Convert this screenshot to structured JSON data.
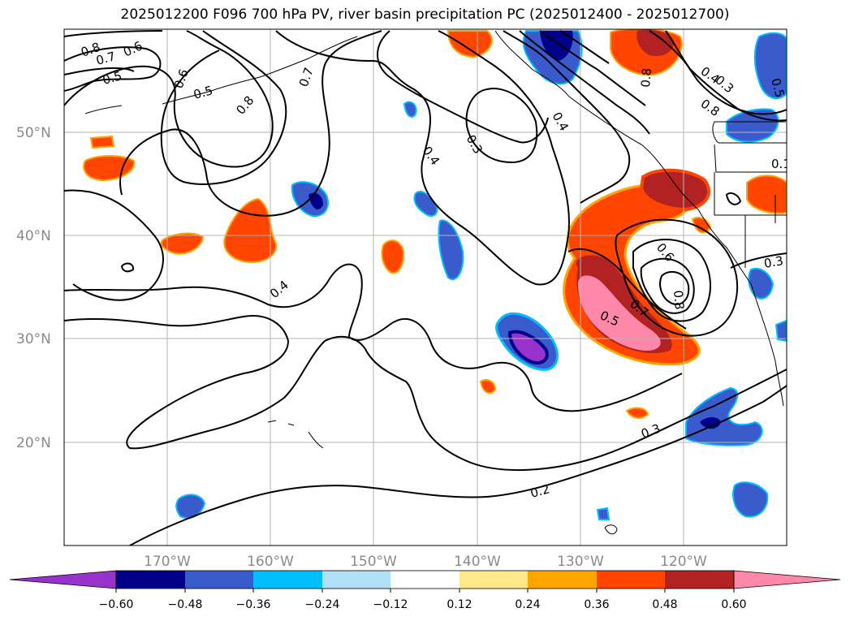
{
  "title": "2025012200 F096 700 hPa PV, river basin precipitation PC (2025012400 - 2025012700)",
  "map": {
    "lat_labels": [
      "50°N",
      "40°N",
      "30°N",
      "20°N"
    ],
    "lon_labels": [
      "170°W",
      "160°W",
      "150°W",
      "140°W",
      "130°W",
      "120°W"
    ],
    "contour_labels": [
      "0.8",
      "0.7",
      "0.6",
      "0.5",
      "0.6",
      "0.5",
      "0.8",
      "0.7",
      "0.4",
      "0.3",
      "0.4",
      "0.4",
      "0.8",
      "0.5",
      "0.3",
      "0.6",
      "0.7",
      "0.8",
      "0.5",
      "0.3",
      "0.2",
      "0.3",
      "0.4",
      "0.8",
      "0.1"
    ]
  },
  "colorbar": {
    "ticks": [
      "−0.60",
      "−0.48",
      "−0.36",
      "−0.24",
      "−0.12",
      "0.12",
      "0.24",
      "0.36",
      "0.48",
      "0.60"
    ],
    "colors": [
      "#9932cc",
      "#00008b",
      "#3a5bcc",
      "#00bfff",
      "#b0e0f8",
      "#ffffff",
      "#ffe88a",
      "#ffa500",
      "#ff4500",
      "#b22222",
      "#ff88aa"
    ]
  }
}
